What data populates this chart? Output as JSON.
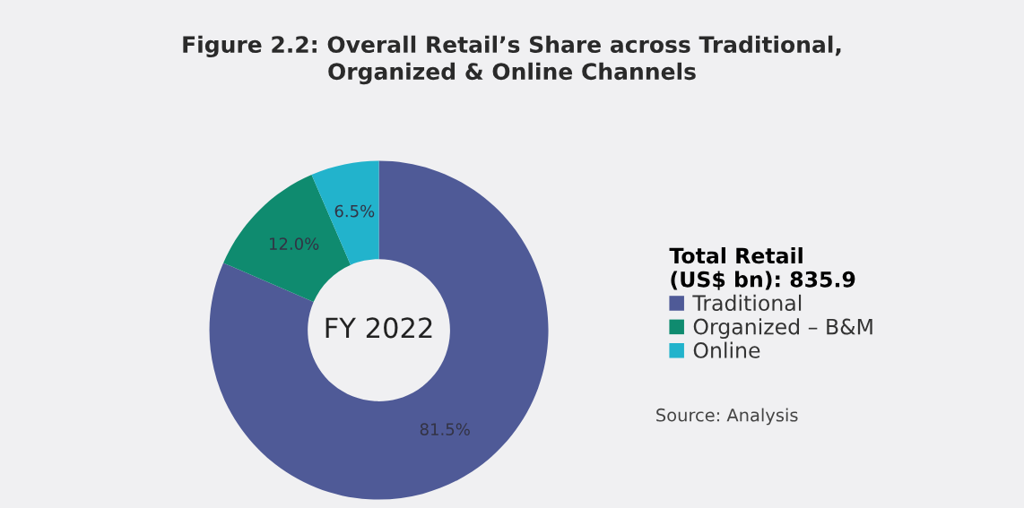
{
  "chart_data": {
    "type": "donut",
    "title": "Figure 2.2: Overall Retail’s Share across Traditional,\nOrganized & Online Channels",
    "categories": [
      "Traditional",
      "Organized – B&M",
      "Online"
    ],
    "values": [
      81.5,
      12.0,
      6.5
    ],
    "value_labels": [
      "81.5%",
      "12.0%",
      "6.5%"
    ],
    "colors": [
      "#4f5a97",
      "#0f8b6f",
      "#22b3cc"
    ],
    "legend_title": "Total Retail\n(US$ bn): 835.9",
    "legend": "right",
    "annotations": [
      "FY 2022",
      "Source: Analysis"
    ]
  }
}
